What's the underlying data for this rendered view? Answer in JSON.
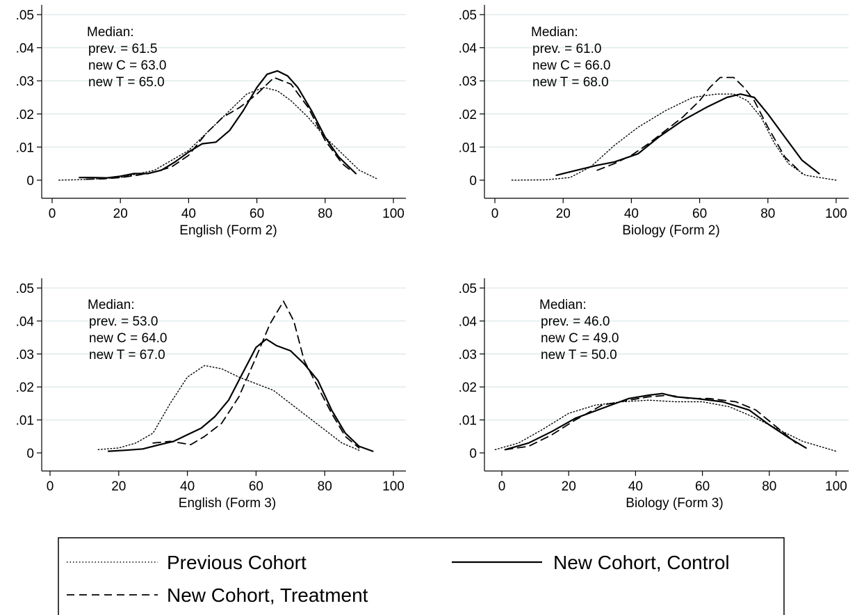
{
  "chart_data": [
    {
      "type": "line",
      "xlabel": "English (Form 2)",
      "ylabel": "",
      "xlim": [
        0,
        100
      ],
      "ylim": [
        0,
        0.05
      ],
      "xticks": [
        "0",
        "20",
        "40",
        "60",
        "80",
        "100"
      ],
      "yticks": [
        "0",
        ".01",
        ".02",
        ".03",
        ".04",
        ".05"
      ],
      "grid": true,
      "annotation": [
        "Median:",
        "prev. = 61.5",
        "new C = 63.0",
        "new T = 65.0"
      ],
      "series": [
        {
          "name": "Previous Cohort",
          "style": "dotted",
          "x": [
            2,
            10,
            20,
            30,
            40,
            50,
            57,
            62,
            66,
            70,
            75,
            80,
            85,
            90,
            95
          ],
          "y": [
            0,
            0.0002,
            0.0008,
            0.003,
            0.009,
            0.019,
            0.026,
            0.028,
            0.027,
            0.024,
            0.019,
            0.013,
            0.008,
            0.003,
            0.0005
          ]
        },
        {
          "name": "New Cohort, Control",
          "style": "solid",
          "x": [
            8,
            12,
            16,
            20,
            24,
            28,
            32,
            36,
            40,
            44,
            48,
            52,
            56,
            60,
            63,
            66,
            69,
            72,
            76,
            80,
            84,
            89
          ],
          "y": [
            0.0008,
            0.0008,
            0.0007,
            0.0012,
            0.002,
            0.002,
            0.003,
            0.0055,
            0.0085,
            0.011,
            0.0115,
            0.015,
            0.021,
            0.028,
            0.032,
            0.033,
            0.0315,
            0.028,
            0.021,
            0.013,
            0.007,
            0.002
          ]
        },
        {
          "name": "New Cohort, Treatment",
          "style": "dashed",
          "x": [
            10,
            15,
            20,
            25,
            30,
            35,
            40,
            45,
            50,
            55,
            60,
            65,
            70,
            75,
            80,
            85,
            88
          ],
          "y": [
            0.0003,
            0.0004,
            0.0008,
            0.0015,
            0.0025,
            0.004,
            0.0075,
            0.014,
            0.019,
            0.022,
            0.026,
            0.031,
            0.029,
            0.022,
            0.012,
            0.005,
            0.0025
          ]
        }
      ]
    },
    {
      "type": "line",
      "xlabel": "Biology (Form 2)",
      "ylabel": "",
      "xlim": [
        0,
        100
      ],
      "ylim": [
        0,
        0.05
      ],
      "xticks": [
        "0",
        "20",
        "40",
        "60",
        "80",
        "100"
      ],
      "yticks": [
        "0",
        ".01",
        ".02",
        ".03",
        ".04",
        ".05"
      ],
      "grid": true,
      "annotation": [
        "Median:",
        "prev. = 61.0",
        "new C = 66.0",
        "new T = 68.0"
      ],
      "series": [
        {
          "name": "Previous Cohort",
          "style": "dotted",
          "x": [
            5,
            15,
            22,
            28,
            35,
            42,
            50,
            58,
            65,
            70,
            74,
            78,
            82,
            86,
            91,
            100
          ],
          "y": [
            0,
            0.0001,
            0.0008,
            0.004,
            0.0105,
            0.016,
            0.021,
            0.025,
            0.026,
            0.026,
            0.024,
            0.019,
            0.011,
            0.005,
            0.0015,
            0
          ]
        },
        {
          "name": "New Cohort, Control",
          "style": "solid",
          "x": [
            18,
            24,
            30,
            35,
            42,
            48,
            55,
            62,
            68,
            72,
            76,
            80,
            85,
            90,
            95
          ],
          "y": [
            0.0015,
            0.003,
            0.0045,
            0.0055,
            0.008,
            0.013,
            0.018,
            0.022,
            0.025,
            0.026,
            0.025,
            0.02,
            0.013,
            0.006,
            0.002
          ]
        },
        {
          "name": "New Cohort, Treatment",
          "style": "dashed",
          "x": [
            30,
            35,
            40,
            45,
            50,
            55,
            60,
            63,
            66,
            70,
            73,
            76,
            80,
            85,
            90
          ],
          "y": [
            0.003,
            0.005,
            0.0075,
            0.011,
            0.015,
            0.019,
            0.024,
            0.028,
            0.031,
            0.031,
            0.028,
            0.024,
            0.016,
            0.007,
            0.002
          ]
        }
      ]
    },
    {
      "type": "line",
      "xlabel": "English (Form 3)",
      "ylabel": "",
      "xlim": [
        0,
        100
      ],
      "ylim": [
        0,
        0.05
      ],
      "xticks": [
        "0",
        "20",
        "40",
        "60",
        "80",
        "100"
      ],
      "yticks": [
        "0",
        ".01",
        ".02",
        ".03",
        ".04",
        ".05"
      ],
      "grid": true,
      "annotation": [
        "Median:",
        "prev. = 53.0",
        "new C = 64.0",
        "new T = 67.0"
      ],
      "series": [
        {
          "name": "Previous Cohort",
          "style": "dotted",
          "x": [
            14,
            20,
            25,
            30,
            35,
            40,
            45,
            50,
            55,
            60,
            65,
            70,
            75,
            80,
            85,
            90
          ],
          "y": [
            0.001,
            0.0015,
            0.003,
            0.006,
            0.015,
            0.023,
            0.0265,
            0.0255,
            0.023,
            0.021,
            0.019,
            0.015,
            0.011,
            0.007,
            0.003,
            0.0008
          ]
        },
        {
          "name": "New Cohort, Control",
          "style": "solid",
          "x": [
            17,
            22,
            27,
            32,
            36,
            40,
            44,
            48,
            52,
            56,
            60,
            63,
            66,
            70,
            74,
            78,
            82,
            86,
            90,
            94
          ],
          "y": [
            0.0005,
            0.0008,
            0.0012,
            0.0025,
            0.0035,
            0.0055,
            0.0075,
            0.011,
            0.016,
            0.024,
            0.032,
            0.0345,
            0.0325,
            0.031,
            0.027,
            0.022,
            0.013,
            0.006,
            0.002,
            0.0005
          ]
        },
        {
          "name": "New Cohort, Treatment",
          "style": "dashed",
          "x": [
            30,
            35,
            41,
            45,
            50,
            55,
            60,
            64,
            68,
            71,
            74,
            78,
            82,
            86,
            90
          ],
          "y": [
            0.003,
            0.0035,
            0.0025,
            0.005,
            0.009,
            0.017,
            0.029,
            0.039,
            0.046,
            0.04,
            0.028,
            0.02,
            0.012,
            0.005,
            0.0015
          ]
        }
      ]
    },
    {
      "type": "line",
      "xlabel": "Biology (Form 3)",
      "ylabel": "",
      "xlim": [
        0,
        100
      ],
      "ylim": [
        0,
        0.05
      ],
      "xticks": [
        "0",
        "20",
        "40",
        "60",
        "80",
        "100"
      ],
      "yticks": [
        "0",
        ".01",
        ".02",
        ".03",
        ".04",
        ".05"
      ],
      "grid": true,
      "annotation": [
        "Median:",
        "prev. = 46.0",
        "new C = 49.0",
        "new T = 50.0"
      ],
      "series": [
        {
          "name": "Previous Cohort",
          "style": "dotted",
          "x": [
            -2,
            5,
            12,
            20,
            28,
            36,
            44,
            52,
            60,
            68,
            75,
            82,
            90,
            95,
            100
          ],
          "y": [
            0.001,
            0.003,
            0.007,
            0.012,
            0.0145,
            0.0155,
            0.016,
            0.0155,
            0.0155,
            0.014,
            0.011,
            0.0075,
            0.0035,
            0.002,
            0.0005
          ]
        },
        {
          "name": "New Cohort, Control",
          "style": "solid",
          "x": [
            1,
            8,
            15,
            22,
            30,
            38,
            44,
            48,
            52,
            58,
            66,
            74,
            80,
            86,
            91
          ],
          "y": [
            0.001,
            0.003,
            0.0065,
            0.0105,
            0.0135,
            0.0165,
            0.0175,
            0.018,
            0.017,
            0.0165,
            0.0155,
            0.013,
            0.0085,
            0.0045,
            0.0015
          ]
        },
        {
          "name": "New Cohort, Treatment",
          "style": "dashed",
          "x": [
            1,
            8,
            15,
            22,
            30,
            38,
            44,
            50,
            56,
            62,
            70,
            76,
            82,
            88
          ],
          "y": [
            0.001,
            0.002,
            0.0055,
            0.01,
            0.0145,
            0.016,
            0.017,
            0.0175,
            0.0165,
            0.0165,
            0.0155,
            0.013,
            0.008,
            0.003
          ]
        }
      ]
    }
  ],
  "legend": {
    "position": "bottom",
    "entries": [
      {
        "label": "Previous Cohort",
        "style": "dotted"
      },
      {
        "label": "New Cohort, Control",
        "style": "solid"
      },
      {
        "label": "New Cohort, Treatment",
        "style": "dashed"
      }
    ]
  },
  "colors": {
    "line": "#000000",
    "grid": "#dde8ea",
    "background": "#ffffff"
  }
}
